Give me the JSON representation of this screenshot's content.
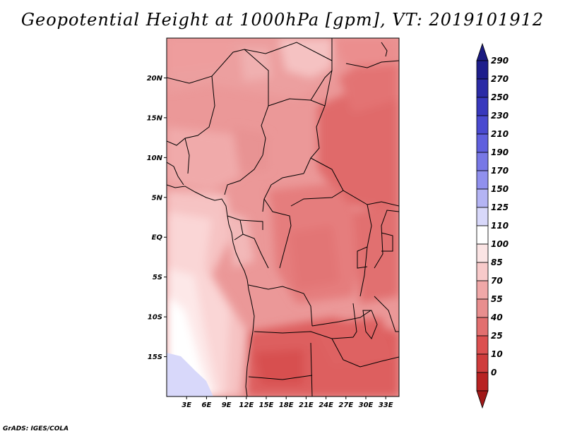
{
  "title": "Geopotential Height at 1000hPa [gpm], VT: 2019101912",
  "credit": "GrADS: IGES/COLA",
  "map": {
    "lat_range": [
      -20,
      25
    ],
    "lon_range": [
      0,
      35
    ],
    "lat_ticks": [
      {
        "value": 20,
        "label": "20N"
      },
      {
        "value": 15,
        "label": "15N"
      },
      {
        "value": 10,
        "label": "10N"
      },
      {
        "value": 5,
        "label": "5N"
      },
      {
        "value": 0,
        "label": "EQ"
      },
      {
        "value": -5,
        "label": "5S"
      },
      {
        "value": -10,
        "label": "10S"
      },
      {
        "value": -15,
        "label": "15S"
      }
    ],
    "lon_ticks": [
      {
        "value": 3,
        "label": "3E"
      },
      {
        "value": 6,
        "label": "6E"
      },
      {
        "value": 9,
        "label": "9E"
      },
      {
        "value": 12,
        "label": "12E"
      },
      {
        "value": 15,
        "label": "15E"
      },
      {
        "value": 18,
        "label": "18E"
      },
      {
        "value": 21,
        "label": "21E"
      },
      {
        "value": 24,
        "label": "24E"
      },
      {
        "value": 27,
        "label": "27E"
      },
      {
        "value": 30,
        "label": "30E"
      },
      {
        "value": 33,
        "label": "33E"
      }
    ]
  },
  "colorbar": {
    "levels": [
      {
        "label": "290",
        "color": "#1e1e8c"
      },
      {
        "label": "270",
        "color": "#2b2ba6"
      },
      {
        "label": "250",
        "color": "#3838bd"
      },
      {
        "label": "230",
        "color": "#4a4ad0"
      },
      {
        "label": "210",
        "color": "#6060de"
      },
      {
        "label": "190",
        "color": "#7878e6"
      },
      {
        "label": "170",
        "color": "#9090ee"
      },
      {
        "label": "150",
        "color": "#b4b4f4"
      },
      {
        "label": "125",
        "color": "#d8d8fa"
      },
      {
        "label": "110",
        "color": "#ffffff"
      },
      {
        "label": "100",
        "color": "#fbe4e4"
      },
      {
        "label": "85",
        "color": "#f8caca"
      },
      {
        "label": "70",
        "color": "#f0a8a8"
      },
      {
        "label": "55",
        "color": "#e88e8e"
      },
      {
        "label": "40",
        "color": "#e26f6f"
      },
      {
        "label": "25",
        "color": "#dc5050"
      },
      {
        "label": "10",
        "color": "#cf3c3c"
      },
      {
        "label": "0",
        "color": "#b82222"
      }
    ],
    "top_arrow_color": "#1a1a80",
    "bottom_arrow_color": "#a01818"
  }
}
